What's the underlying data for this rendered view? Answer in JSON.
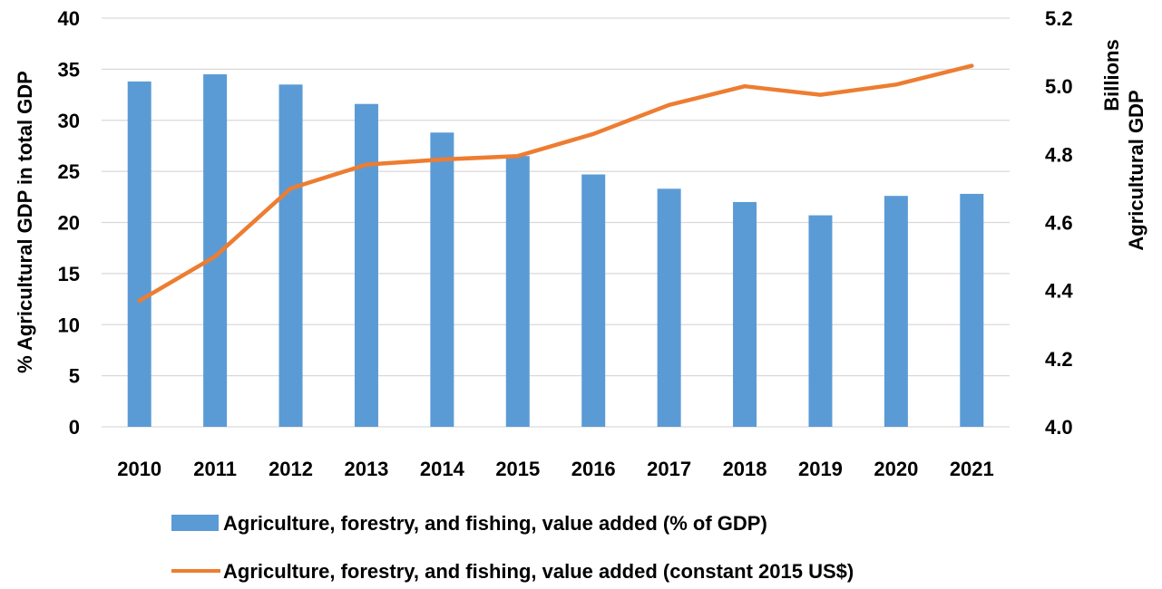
{
  "chart_data": {
    "type": "bar+line",
    "categories": [
      "2010",
      "2011",
      "2012",
      "2013",
      "2014",
      "2015",
      "2016",
      "2017",
      "2018",
      "2019",
      "2020",
      "2021"
    ],
    "series": [
      {
        "name": "Agriculture, forestry, and fishing, value added (% of GDP)",
        "type": "bar",
        "axis": "left",
        "color": "#5B9BD5",
        "values": [
          33.8,
          34.5,
          33.5,
          31.6,
          28.8,
          26.5,
          24.7,
          23.3,
          22.0,
          20.7,
          22.6,
          22.8
        ]
      },
      {
        "name": "Agriculture, forestry, and fishing, value added (constant 2015 US$)",
        "type": "line",
        "axis": "right",
        "color": "#ED7D31",
        "values": [
          4.37,
          4.5,
          4.7,
          4.77,
          4.785,
          4.795,
          4.86,
          4.945,
          5.0,
          4.975,
          5.005,
          5.06
        ]
      }
    ],
    "y_left": {
      "label": "% Agricultural GDP in total GDP",
      "range": [
        0,
        40
      ],
      "ticks": [
        "0",
        "5",
        "10",
        "15",
        "20",
        "25",
        "30",
        "35",
        "40"
      ]
    },
    "y_right": {
      "label_line1": "Billions",
      "label_line2": "Agricultural GDP",
      "range": [
        4.0,
        5.2
      ],
      "ticks": [
        "4.0",
        "4.2",
        "4.4",
        "4.6",
        "4.8",
        "5.0",
        "5.2"
      ]
    },
    "grid": true,
    "legend_position": "bottom"
  }
}
